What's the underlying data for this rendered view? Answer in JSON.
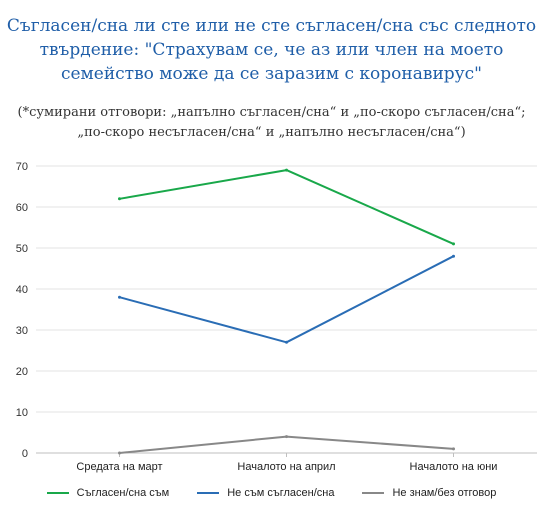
{
  "title_text": "Съгласен/сна ли сте или не сте съгласен/сна със следното твърдение: \"Страхувам се, че аз или член на моето семейство може да се заразим с коронавирус\"",
  "subtitle_text": "(*сумирани отговори: „напълно съгласен/сна“ и „по-скоро съгласен/сна“; „по-скоро несъгласен/сна“ и „напълно несъгласен/сна“)",
  "chart_data": {
    "type": "line",
    "title": "Съгласен/сна ли сте или не сте съгласен/сна със следното твърдение: \"Страхувам се, че аз или член на моето семейство може да се заразим с коронавирус\"",
    "categories": [
      "Средата на март",
      "Началото на април",
      "Началото на юни"
    ],
    "series": [
      {
        "name": "Съгласен/сна съм",
        "values": [
          62,
          69,
          51
        ],
        "color": "#19a84a"
      },
      {
        "name": "Не съм съгласен/сна",
        "values": [
          38,
          27,
          48
        ],
        "color": "#2a6db5"
      },
      {
        "name": "Не знам/без отговор",
        "values": [
          0,
          4,
          1
        ],
        "color": "#888888"
      }
    ],
    "ylim": [
      0,
      70
    ],
    "yticks": [
      0,
      10,
      20,
      30,
      40,
      50,
      60,
      70
    ],
    "xlabel": "",
    "ylabel": "",
    "grid": true,
    "legend": "bottom"
  }
}
